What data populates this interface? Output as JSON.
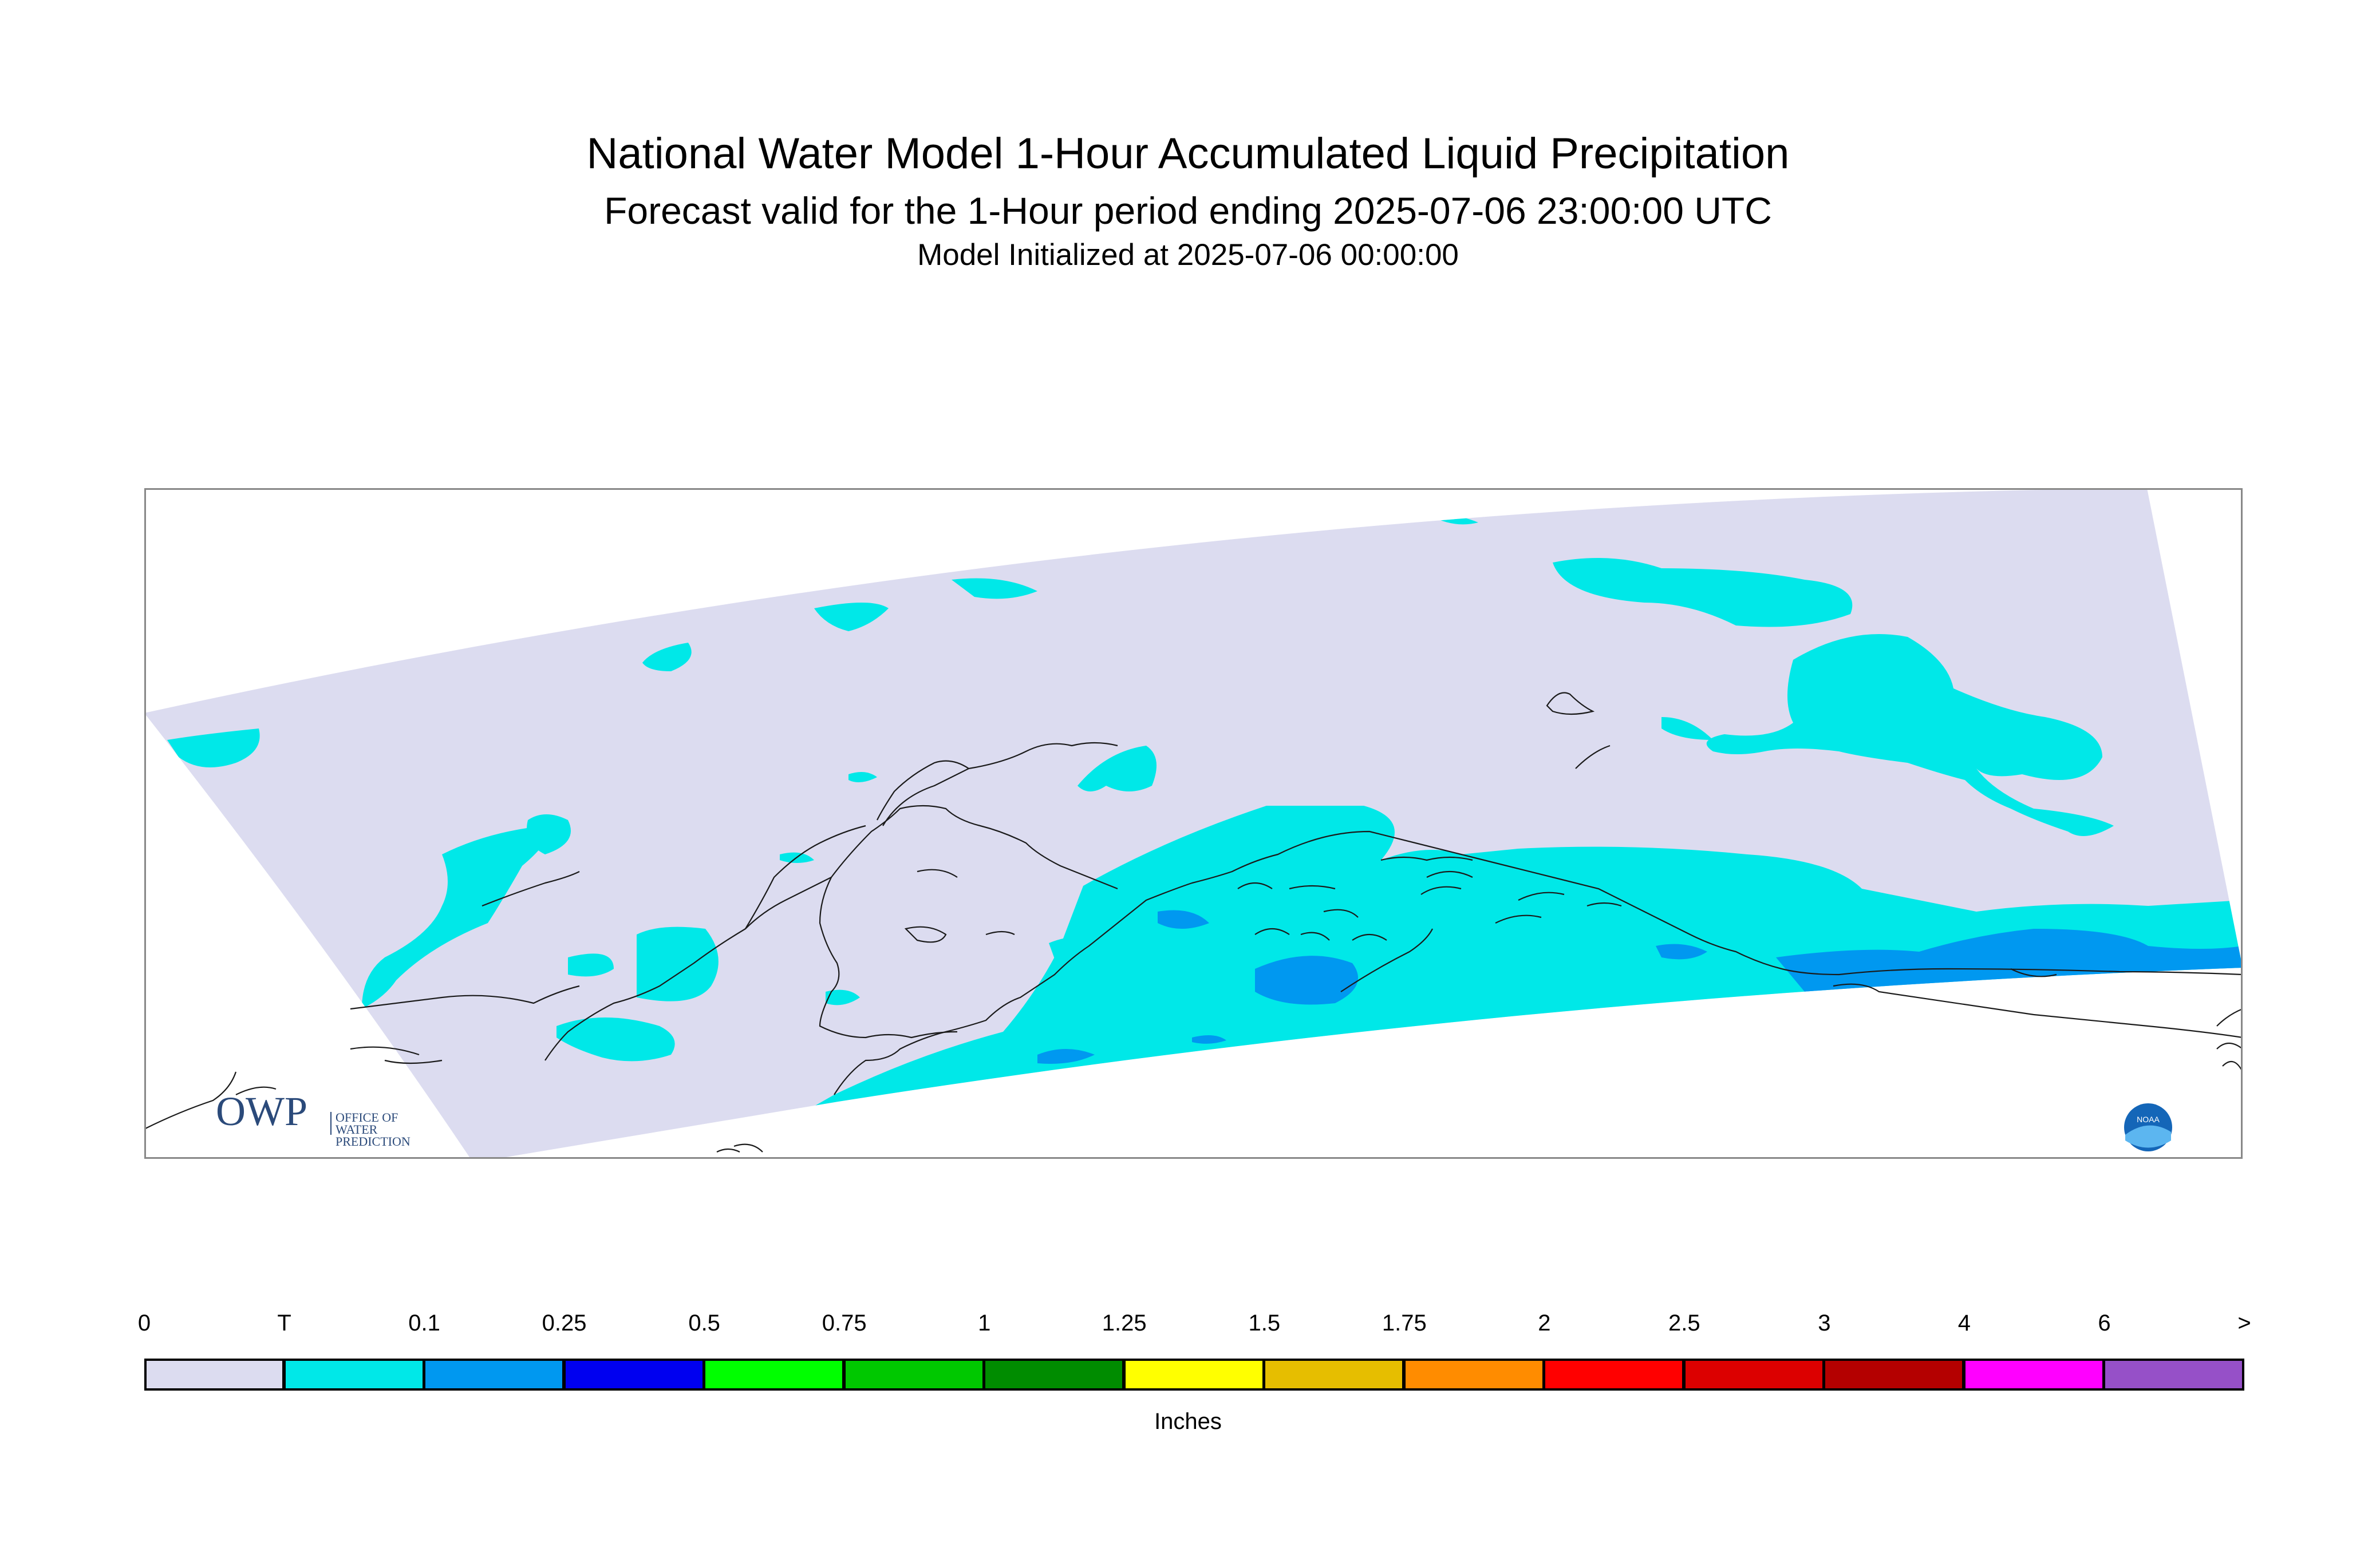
{
  "header": {
    "title": "National Water Model 1-Hour Accumulated Liquid Precipitation",
    "subtitle": "Forecast valid for the 1-Hour period ending 2025-07-06 23:00:00 UTC",
    "init": "Model Initialized at 2025-07-06 00:00:00"
  },
  "logos": {
    "owp_mark": "OWP",
    "owp_text": [
      "OFFICE OF",
      "WATER",
      "PREDICTION"
    ],
    "noaa_text": "NOAA"
  },
  "legend": {
    "units": "Inches",
    "ticks": [
      "0",
      "T",
      "0.1",
      "0.25",
      "0.5",
      "0.75",
      "1",
      "1.25",
      "1.5",
      "1.75",
      "2",
      "2.5",
      "3",
      "4",
      "6",
      ">"
    ],
    "colors": [
      "#dcdcf0",
      "#00e8e8",
      "#0098f0",
      "#0000f0",
      "#00ff00",
      "#00c800",
      "#008c00",
      "#ffff00",
      "#e6be00",
      "#ff8c00",
      "#ff0000",
      "#dc0000",
      "#b40000",
      "#ff00ff",
      "#9650c8"
    ]
  },
  "map": {
    "domain_fill": "#dcdcf0",
    "trace_color": "#00e8e8",
    "light_color": "#0098f0",
    "coastline_color": "#1a1a1a",
    "frame_color": "#888888"
  }
}
